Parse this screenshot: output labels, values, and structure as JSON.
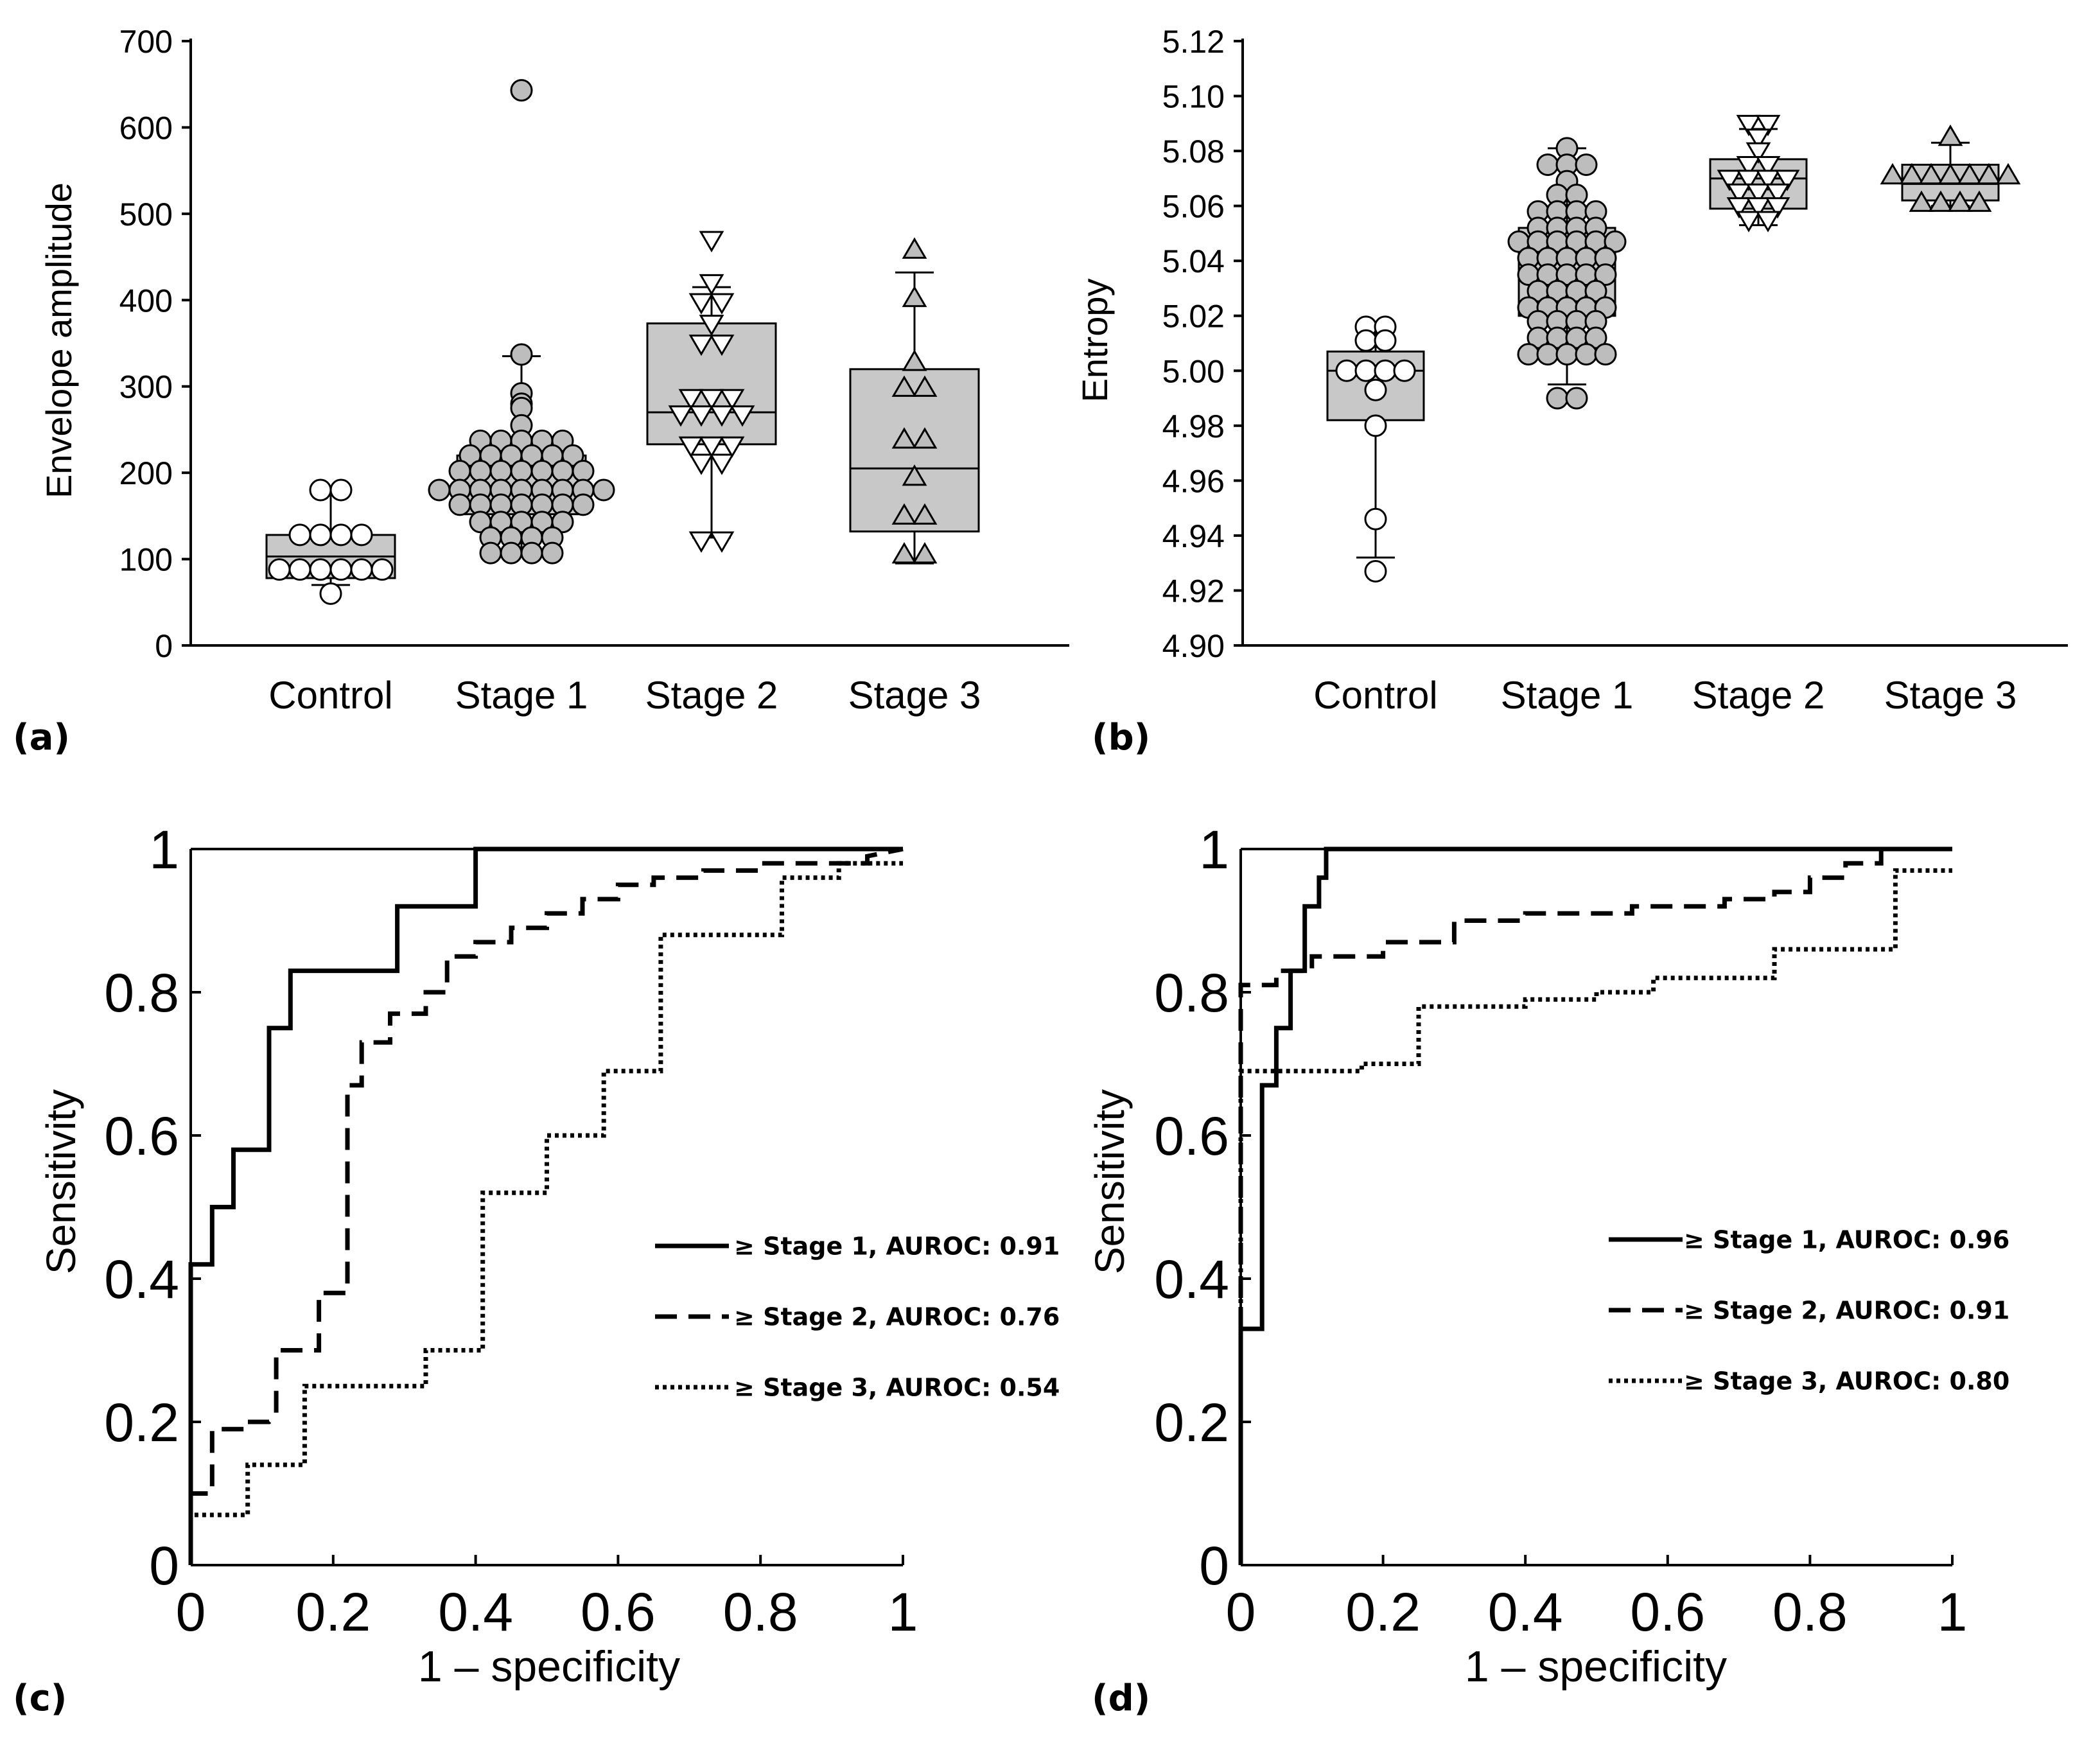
{
  "colors": {
    "axis": "#000000",
    "box_fill": "#c8c8c8",
    "marker_gray": "#bdbdbd",
    "marker_white": "#ffffff"
  },
  "chart_data": [
    {
      "id": "a",
      "type": "box",
      "panel_label": "(a)",
      "xlabel": "",
      "ylabel": "Envelope amplitude",
      "ylim": [
        0,
        700
      ],
      "yticks": [
        "0",
        "100",
        "200",
        "300",
        "400",
        "500",
        "600",
        "700"
      ],
      "categories": [
        "Control",
        "Stage 1",
        "Stage 2",
        "Stage 3"
      ],
      "boxes": [
        {
          "category": "Control",
          "marker": "circle",
          "marker_fill": "white",
          "whisker_low": 70,
          "q1": 78,
          "median": 103,
          "q3": 128,
          "whisker_high": 180,
          "points": [
            180,
            180,
            128,
            128,
            128,
            128,
            88,
            88,
            88,
            88,
            88,
            88,
            60
          ]
        },
        {
          "category": "Stage 1",
          "marker": "circle",
          "marker_fill": "gray",
          "whisker_low": 105,
          "q1": 152,
          "median": 180,
          "q3": 220,
          "whisker_high": 335,
          "points": [
            643,
            337,
            292,
            280,
            275,
            255,
            237,
            237,
            237,
            237,
            237,
            220,
            220,
            220,
            220,
            220,
            220,
            202,
            202,
            202,
            202,
            202,
            202,
            202,
            180,
            180,
            180,
            180,
            180,
            180,
            180,
            180,
            180,
            163,
            163,
            163,
            163,
            163,
            163,
            163,
            143,
            143,
            143,
            143,
            143,
            125,
            125,
            125,
            125,
            107,
            107,
            107,
            107
          ]
        },
        {
          "category": "Stage 2",
          "marker": "triangle-down",
          "marker_fill": "white",
          "whisker_low": 125,
          "q1": 233,
          "median": 270,
          "q3": 373,
          "whisker_high": 415,
          "points": [
            470,
            420,
            398,
            398,
            373,
            350,
            350,
            287,
            287,
            287,
            268,
            268,
            268,
            268,
            232,
            232,
            232,
            212,
            212,
            122,
            122
          ]
        },
        {
          "category": "Stage 3",
          "marker": "triangle-up",
          "marker_fill": "gray",
          "whisker_low": 95,
          "q1": 132,
          "median": 205,
          "q3": 320,
          "whisker_high": 432,
          "points": [
            458,
            402,
            328,
            298,
            298,
            238,
            238,
            195,
            150,
            150,
            105,
            105
          ]
        }
      ]
    },
    {
      "id": "b",
      "type": "box",
      "panel_label": "(b)",
      "xlabel": "",
      "ylabel": "Entropy",
      "ylim": [
        4.9,
        5.12
      ],
      "yticks": [
        "4.90",
        "4.92",
        "4.94",
        "4.96",
        "4.98",
        "5.00",
        "5.02",
        "5.04",
        "5.06",
        "5.08",
        "5.10",
        "5.12"
      ],
      "categories": [
        "Control",
        "Stage 1",
        "Stage 2",
        "Stage 3"
      ],
      "boxes": [
        {
          "category": "Control",
          "marker": "circle",
          "marker_fill": "white",
          "whisker_low": 4.932,
          "q1": 4.982,
          "median": 5.0,
          "q3": 5.007,
          "whisker_high": 5.016,
          "points": [
            5.016,
            5.016,
            5.011,
            5.011,
            5.0,
            5.0,
            5.0,
            5.0,
            4.993,
            4.98,
            4.946,
            4.927
          ]
        },
        {
          "category": "Stage 1",
          "marker": "circle",
          "marker_fill": "gray",
          "whisker_low": 4.995,
          "q1": 5.02,
          "median": 5.041,
          "q3": 5.052,
          "whisker_high": 5.081,
          "points": [
            5.081,
            5.075,
            5.075,
            5.075,
            5.069,
            5.064,
            5.064,
            5.058,
            5.058,
            5.058,
            5.058,
            5.052,
            5.052,
            5.052,
            5.052,
            5.047,
            5.047,
            5.047,
            5.047,
            5.047,
            5.047,
            5.041,
            5.041,
            5.041,
            5.041,
            5.041,
            5.035,
            5.035,
            5.035,
            5.035,
            5.035,
            5.029,
            5.029,
            5.029,
            5.029,
            5.023,
            5.023,
            5.023,
            5.023,
            5.023,
            5.018,
            5.018,
            5.018,
            5.018,
            5.012,
            5.012,
            5.012,
            5.012,
            5.006,
            5.006,
            5.006,
            5.006,
            5.006,
            4.99,
            4.99
          ]
        },
        {
          "category": "Stage 2",
          "marker": "triangle-down",
          "marker_fill": "white",
          "whisker_low": 5.053,
          "q1": 5.059,
          "median": 5.07,
          "q3": 5.077,
          "whisker_high": 5.088,
          "points": [
            5.09,
            5.09,
            5.085,
            5.08,
            5.075,
            5.075,
            5.07,
            5.07,
            5.07,
            5.07,
            5.065,
            5.065,
            5.065,
            5.06,
            5.06,
            5.06,
            5.055,
            5.055
          ]
        },
        {
          "category": "Stage 3",
          "marker": "triangle-up",
          "marker_fill": "gray",
          "whisker_low": 5.06,
          "q1": 5.062,
          "median": 5.068,
          "q3": 5.075,
          "whisker_high": 5.083,
          "points": [
            5.085,
            5.071,
            5.071,
            5.071,
            5.071,
            5.071,
            5.071,
            5.071,
            5.061,
            5.061,
            5.061,
            5.061
          ]
        }
      ]
    },
    {
      "id": "c",
      "type": "line",
      "panel_label": "(c)",
      "xlabel": "1 – specificity",
      "ylabel": "Sensitivity",
      "xlim": [
        0,
        1
      ],
      "ylim": [
        0,
        1
      ],
      "xticks": [
        "0",
        "0.2",
        "0.4",
        "0.6",
        "0.8",
        "1"
      ],
      "yticks": [
        "0",
        "0.2",
        "0.4",
        "0.6",
        "0.8",
        "1"
      ],
      "legend_position": "right",
      "series": [
        {
          "name": "≥ Stage 1, AUROC: 0.91",
          "dash": "solid",
          "x": [
            0,
            0,
            0.03,
            0.03,
            0.06,
            0.06,
            0.11,
            0.11,
            0.14,
            0.14,
            0.29,
            0.29,
            0.4,
            0.4,
            1.0
          ],
          "y": [
            0,
            0.42,
            0.42,
            0.5,
            0.5,
            0.58,
            0.58,
            0.75,
            0.75,
            0.83,
            0.83,
            0.92,
            0.92,
            1.0,
            1.0
          ]
        },
        {
          "name": "≥ Stage 2, AUROC: 0.76",
          "dash": "dashed",
          "x": [
            0,
            0,
            0.03,
            0.03,
            0.06,
            0.08,
            0.08,
            0.11,
            0.12,
            0.12,
            0.16,
            0.18,
            0.18,
            0.22,
            0.22,
            0.24,
            0.24,
            0.28,
            0.28,
            0.33,
            0.33,
            0.36,
            0.36,
            0.4,
            0.4,
            0.45,
            0.45,
            0.5,
            0.5,
            0.55,
            0.55,
            0.6,
            0.6,
            0.65,
            0.65,
            0.72,
            0.72,
            0.8,
            0.8,
            0.88,
            0.88,
            0.95,
            0.95,
            1.0
          ],
          "y": [
            0,
            0.1,
            0.1,
            0.19,
            0.19,
            0.19,
            0.2,
            0.2,
            0.21,
            0.3,
            0.3,
            0.3,
            0.38,
            0.38,
            0.67,
            0.67,
            0.73,
            0.73,
            0.77,
            0.77,
            0.8,
            0.8,
            0.85,
            0.85,
            0.87,
            0.87,
            0.89,
            0.89,
            0.91,
            0.91,
            0.93,
            0.93,
            0.95,
            0.95,
            0.96,
            0.96,
            0.97,
            0.97,
            0.98,
            0.98,
            0.98,
            0.98,
            0.99,
            1.0
          ]
        },
        {
          "name": "≥ Stage 3, AUROC: 0.54",
          "dash": "dotted",
          "x": [
            0,
            0,
            0.08,
            0.08,
            0.16,
            0.16,
            0.33,
            0.33,
            0.41,
            0.41,
            0.5,
            0.5,
            0.58,
            0.58,
            0.66,
            0.66,
            0.83,
            0.83,
            0.91,
            0.91,
            1.0
          ],
          "y": [
            0,
            0.07,
            0.07,
            0.14,
            0.14,
            0.25,
            0.25,
            0.3,
            0.3,
            0.52,
            0.52,
            0.6,
            0.6,
            0.69,
            0.69,
            0.88,
            0.88,
            0.96,
            0.96,
            0.98,
            0.98
          ]
        }
      ]
    },
    {
      "id": "d",
      "type": "line",
      "panel_label": "(d)",
      "xlabel": "1 – specificity",
      "ylabel": "Sensitivity",
      "xlim": [
        0,
        1
      ],
      "ylim": [
        0,
        1
      ],
      "xticks": [
        "0",
        "0.2",
        "0.4",
        "0.6",
        "0.8",
        "1"
      ],
      "yticks": [
        "0",
        "0.2",
        "0.4",
        "0.6",
        "0.8",
        "1"
      ],
      "legend_position": "right",
      "series": [
        {
          "name": "≥ Stage 1, AUROC: 0.96",
          "dash": "solid",
          "x": [
            0,
            0,
            0.03,
            0.03,
            0.05,
            0.05,
            0.07,
            0.07,
            0.09,
            0.09,
            0.11,
            0.11,
            0.12,
            0.12,
            1.0
          ],
          "y": [
            0,
            0.33,
            0.33,
            0.67,
            0.67,
            0.75,
            0.75,
            0.83,
            0.83,
            0.92,
            0.92,
            0.96,
            0.96,
            1.0,
            1.0
          ]
        },
        {
          "name": "≥ Stage 2, AUROC: 0.91",
          "dash": "dashed",
          "x": [
            0,
            0,
            0.05,
            0.05,
            0.1,
            0.1,
            0.2,
            0.2,
            0.3,
            0.3,
            0.4,
            0.4,
            0.55,
            0.55,
            0.68,
            0.68,
            0.75,
            0.75,
            0.8,
            0.8,
            0.85,
            0.85,
            0.9,
            0.9,
            1.0
          ],
          "y": [
            0,
            0.81,
            0.81,
            0.83,
            0.83,
            0.85,
            0.85,
            0.87,
            0.87,
            0.9,
            0.9,
            0.91,
            0.91,
            0.92,
            0.92,
            0.93,
            0.93,
            0.94,
            0.94,
            0.96,
            0.96,
            0.98,
            0.98,
            1.0,
            1.0
          ]
        },
        {
          "name": "≥ Stage 3, AUROC: 0.80",
          "dash": "dotted",
          "x": [
            0,
            0,
            0.17,
            0.17,
            0.21,
            0.21,
            0.25,
            0.25,
            0.4,
            0.4,
            0.5,
            0.5,
            0.58,
            0.58,
            0.75,
            0.75,
            0.92,
            0.92,
            1.0
          ],
          "y": [
            0,
            0.69,
            0.69,
            0.7,
            0.7,
            0.7,
            0.7,
            0.78,
            0.78,
            0.79,
            0.79,
            0.8,
            0.8,
            0.82,
            0.82,
            0.86,
            0.86,
            0.97,
            0.97
          ]
        }
      ]
    }
  ]
}
